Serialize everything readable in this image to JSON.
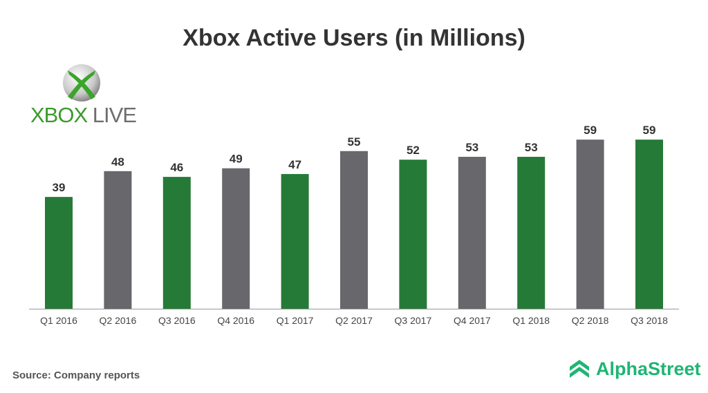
{
  "chart_data": {
    "type": "bar",
    "title": "Xbox Active Users (in Millions)",
    "categories": [
      "Q1 2016",
      "Q2 2016",
      "Q3 2016",
      "Q4 2016",
      "Q1 2017",
      "Q2 2017",
      "Q3 2017",
      "Q4 2017",
      "Q1 2018",
      "Q2 2018",
      "Q3 2018"
    ],
    "values": [
      39,
      48,
      46,
      49,
      47,
      55,
      52,
      53,
      53,
      59,
      59
    ],
    "bar_colors": [
      "#267a37",
      "#67676c",
      "#267a37",
      "#67676c",
      "#267a37",
      "#67676c",
      "#267a37",
      "#67676c",
      "#267a37",
      "#67676c",
      "#267a37"
    ],
    "xlabel": "",
    "ylabel": "",
    "ylim": [
      0,
      60
    ],
    "grid": false,
    "data_labels": true
  },
  "logo": {
    "text_x": "XBOX",
    "text_live": "LIVE",
    "icon": "xbox-sphere-icon"
  },
  "source": "Source: Company reports",
  "brand": {
    "name": "AlphaStreet",
    "icon": "alphastreet-chevron-icon",
    "color": "#1fb574"
  }
}
